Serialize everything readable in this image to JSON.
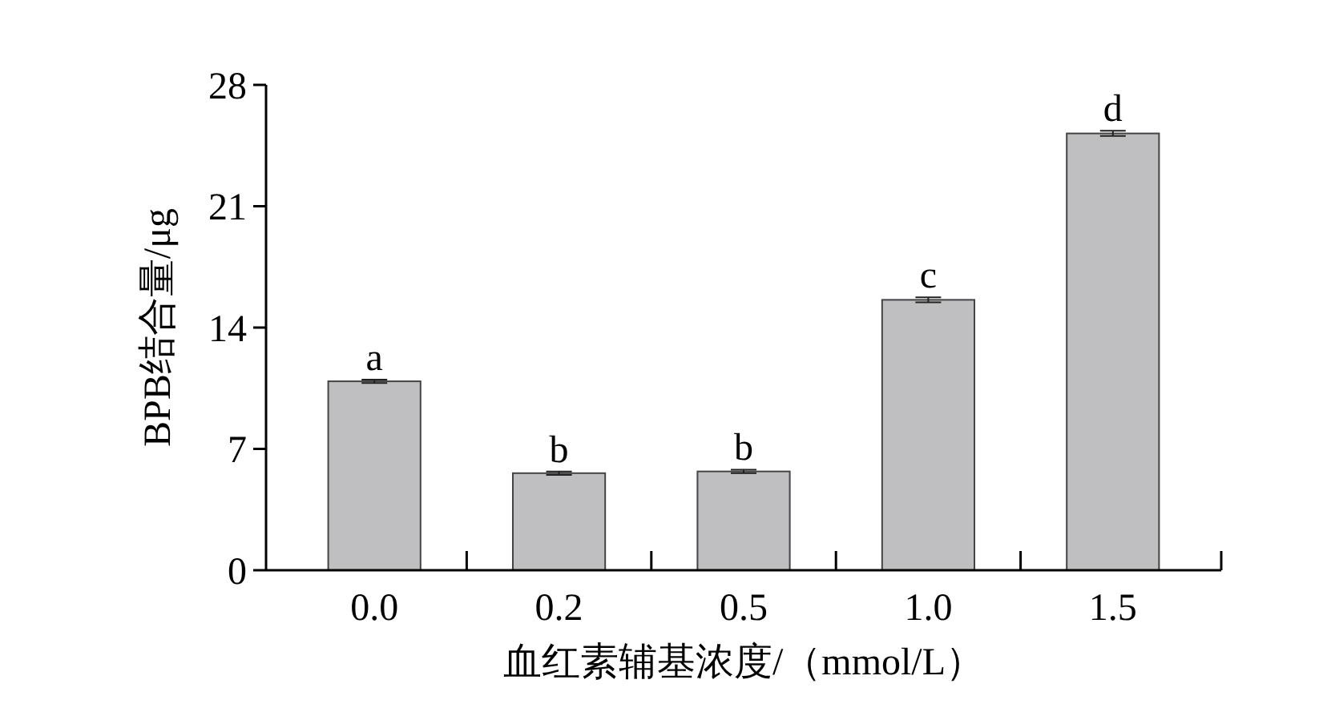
{
  "chart_data": {
    "type": "bar",
    "xlabel": "血红素辅基浓度/（mmol/L）",
    "ylabel": "BPB结合量/μg",
    "categories": [
      "0.0",
      "0.2",
      "0.5",
      "1.0",
      "1.5"
    ],
    "values": [
      10.9,
      5.6,
      5.7,
      15.6,
      25.2
    ],
    "errors": [
      0.1,
      0.1,
      0.1,
      0.15,
      0.15
    ],
    "color": "#bfbfc1",
    "ylim": [
      0,
      28
    ],
    "yticks": [
      0,
      7,
      14,
      21,
      28
    ],
    "annotations": [
      {
        "text": "a",
        "x": "0.0",
        "y": 10.9
      },
      {
        "text": "b",
        "x": "0.2",
        "y": 5.6
      },
      {
        "text": "b",
        "x": "0.5",
        "y": 5.7
      },
      {
        "text": "c",
        "x": "1.0",
        "y": 15.6
      },
      {
        "text": "d",
        "x": "1.5",
        "y": 25.2
      }
    ],
    "grid": false
  }
}
